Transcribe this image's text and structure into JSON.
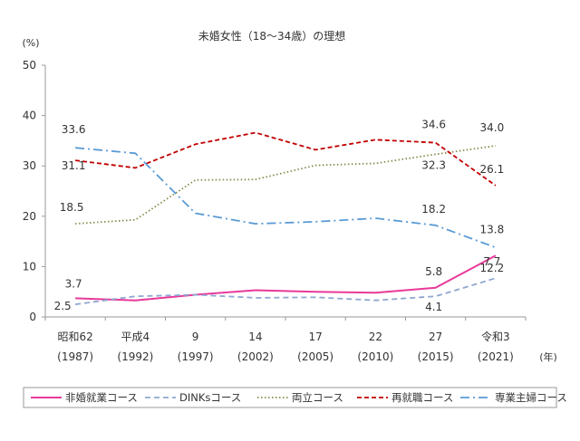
{
  "chart_data": {
    "type": "line",
    "title": "未婚女性（18〜34歳）の理想",
    "ylabel": "(%)",
    "xunit": "(年)",
    "ylim": [
      0,
      50
    ],
    "yticks": [
      0,
      10,
      20,
      30,
      40,
      50
    ],
    "categories": [
      {
        "top": "昭和62",
        "bottom": "(1987)"
      },
      {
        "top": "平成4",
        "bottom": "(1992)"
      },
      {
        "top": "9",
        "bottom": "(1997)"
      },
      {
        "top": "14",
        "bottom": "(2002)"
      },
      {
        "top": "17",
        "bottom": "(2005)"
      },
      {
        "top": "22",
        "bottom": "(2010)"
      },
      {
        "top": "27",
        "bottom": "(2015)"
      },
      {
        "top": "令和3",
        "bottom": "(2021)"
      }
    ],
    "series": [
      {
        "name": "非婚就業コース",
        "color": "#e8399a",
        "style": "solid",
        "values": [
          3.7,
          3.3,
          4.4,
          5.3,
          5.0,
          4.8,
          5.8,
          12.2
        ]
      },
      {
        "name": "DINKsコース",
        "color": "#8fa7d0",
        "style": "dash",
        "values": [
          2.5,
          4.1,
          4.4,
          3.8,
          3.9,
          3.3,
          4.1,
          7.7
        ]
      },
      {
        "name": "両立コース",
        "color": "#8a8a4e",
        "style": "dot",
        "values": [
          18.5,
          19.3,
          27.2,
          27.3,
          30.1,
          30.5,
          32.3,
          34.0
        ]
      },
      {
        "name": "再就職コース",
        "color": "#c00000",
        "style": "bigdash",
        "values": [
          31.1,
          29.6,
          34.3,
          36.6,
          33.2,
          35.2,
          34.6,
          26.1
        ]
      },
      {
        "name": "専業主婦コース",
        "color": "#5a9bd5",
        "style": "dashdot",
        "values": [
          33.6,
          32.5,
          20.6,
          18.5,
          18.9,
          19.6,
          18.2,
          13.8
        ]
      }
    ],
    "annotations": [
      {
        "text": "33.6",
        "series": 4,
        "index": 0
      },
      {
        "text": "31.1",
        "series": 3,
        "index": 0
      },
      {
        "text": "18.5",
        "series": 2,
        "index": 0
      },
      {
        "text": "3.7",
        "series": 0,
        "index": 0
      },
      {
        "text": "2.5",
        "series": 1,
        "index": 0
      },
      {
        "text": "34.6",
        "series": 3,
        "index": 6
      },
      {
        "text": "32.3",
        "series": 2,
        "index": 6
      },
      {
        "text": "18.2",
        "series": 4,
        "index": 6
      },
      {
        "text": "5.8",
        "series": 0,
        "index": 6
      },
      {
        "text": "4.1",
        "series": 1,
        "index": 6
      },
      {
        "text": "34.0",
        "series": 2,
        "index": 7
      },
      {
        "text": "26.1",
        "series": 3,
        "index": 7
      },
      {
        "text": "13.8",
        "series": 4,
        "index": 7
      },
      {
        "text": "12.2",
        "series": 0,
        "index": 7
      },
      {
        "text": "7.7",
        "series": 1,
        "index": 7
      }
    ],
    "grid": false,
    "legend_position": "bottom"
  }
}
